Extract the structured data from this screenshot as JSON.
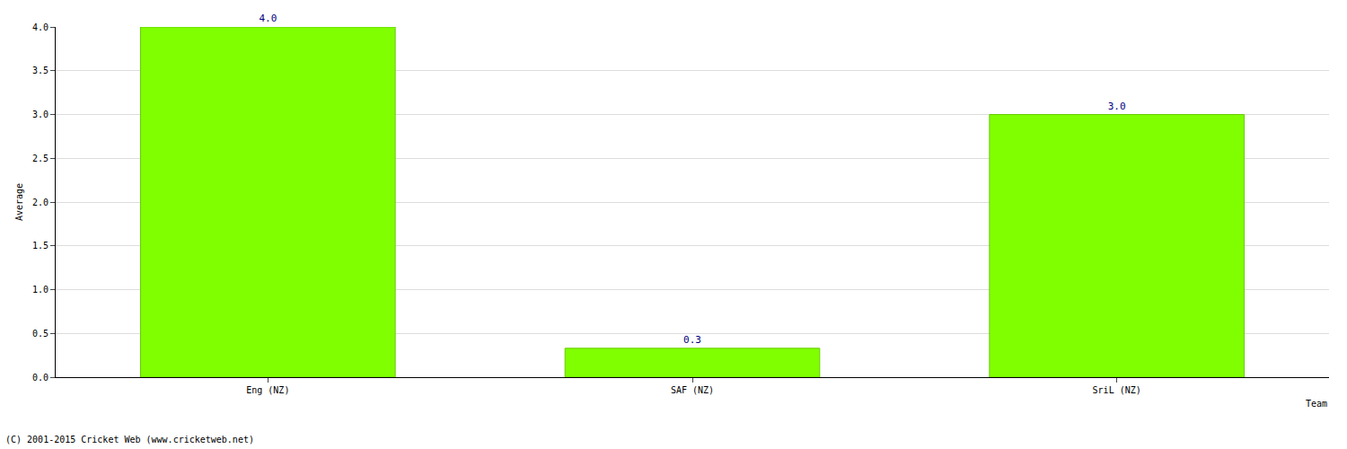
{
  "chart_data": {
    "type": "bar",
    "categories": [
      "Eng (NZ)",
      "SAF (NZ)",
      "SriL (NZ)"
    ],
    "values": [
      4.0,
      0.33,
      3.0
    ],
    "value_labels": [
      "4.0",
      "0.3",
      "3.0"
    ],
    "data_labels": true,
    "color": "#80ff00",
    "xlabel": "Team",
    "ylabel": "Average",
    "footer": "(C) 2001-2015 Cricket Web (www.cricketweb.net)",
    "ylim": [
      0,
      4
    ],
    "yticks": [
      {
        "value": 0,
        "label": "0.0"
      },
      {
        "value": 0.5,
        "label": "0.5"
      },
      {
        "value": 1,
        "label": "1.0"
      },
      {
        "value": 1.5,
        "label": "1.5"
      },
      {
        "value": 2,
        "label": "2.0"
      },
      {
        "value": 2.5,
        "label": "2.5"
      },
      {
        "value": 3,
        "label": "3.0"
      },
      {
        "value": 3.5,
        "label": "3.5"
      },
      {
        "value": 4,
        "label": "4.0"
      }
    ],
    "grid": true
  }
}
